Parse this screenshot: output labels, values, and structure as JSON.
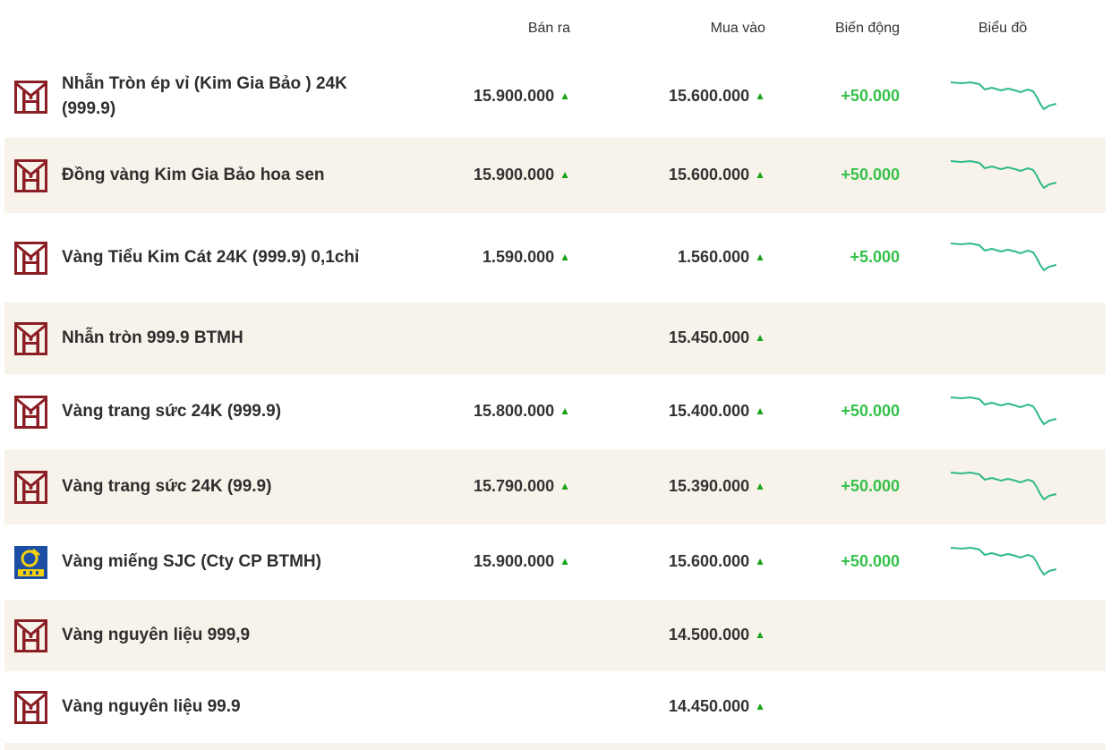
{
  "header": {
    "sell": "Bán ra",
    "buy": "Mua vào",
    "change": "Biến động",
    "chart": "Biểu đồ"
  },
  "colors": {
    "brand_red": "#8b1e24",
    "row_alt_bg": "#f8f3ea",
    "up_arrow": "#17a317",
    "change_text": "#35c14a",
    "sparkline": "#2fb98a",
    "sjc_blue": "#1c4fa3",
    "sjc_yellow": "#f5d10d"
  },
  "rows": [
    {
      "logo": "btmh-logo-icon",
      "name": "Nhẫn Tròn ép vỉ (Kim Gia Bảo ) 24K (999.9)",
      "sell": "15.900.000",
      "sell_arrow": "▲",
      "buy": "15.600.000",
      "buy_arrow": "▲",
      "change": "+50.000",
      "chart": true
    },
    {
      "logo": "btmh-logo-icon",
      "name": "Đồng vàng Kim Gia Bảo hoa sen",
      "sell": "15.900.000",
      "sell_arrow": "▲",
      "buy": "15.600.000",
      "buy_arrow": "▲",
      "change": "+50.000",
      "chart": true
    },
    {
      "logo": "btmh-logo-icon",
      "name": "Vàng Tiểu Kim Cát 24K (999.9) 0,1chỉ",
      "sell": "1.590.000",
      "sell_arrow": "▲",
      "buy": "1.560.000",
      "buy_arrow": "▲",
      "change": "+5.000",
      "chart": true
    },
    {
      "logo": "btmh-logo-icon",
      "name": "Nhẫn tròn 999.9 BTMH",
      "sell": "",
      "sell_arrow": "",
      "buy": "15.450.000",
      "buy_arrow": "▲",
      "change": "",
      "chart": false
    },
    {
      "logo": "btmh-logo-icon",
      "name": "Vàng trang sức 24K (999.9)",
      "sell": "15.800.000",
      "sell_arrow": "▲",
      "buy": "15.400.000",
      "buy_arrow": "▲",
      "change": "+50.000",
      "chart": true
    },
    {
      "logo": "btmh-logo-icon",
      "name": "Vàng trang sức 24K (99.9)",
      "sell": "15.790.000",
      "sell_arrow": "▲",
      "buy": "15.390.000",
      "buy_arrow": "▲",
      "change": "+50.000",
      "chart": true
    },
    {
      "logo": "sjc-logo-icon",
      "name": "Vàng miếng SJC (Cty CP BTMH)",
      "sell": "15.900.000",
      "sell_arrow": "▲",
      "buy": "15.600.000",
      "buy_arrow": "▲",
      "change": "+50.000",
      "chart": true
    },
    {
      "logo": "btmh-logo-icon",
      "name": "Vàng nguyên liệu 999,9",
      "sell": "",
      "sell_arrow": "",
      "buy": "14.500.000",
      "buy_arrow": "▲",
      "change": "",
      "chart": false
    },
    {
      "logo": "btmh-logo-icon",
      "name": "Vàng nguyên liệu 99.9",
      "sell": "",
      "sell_arrow": "",
      "buy": "14.450.000",
      "buy_arrow": "▲",
      "change": "",
      "chart": false
    },
    {
      "logo": "",
      "name": "",
      "sell": "",
      "sell_arrow": "",
      "buy": "",
      "buy_arrow": "",
      "change": "",
      "chart": false
    }
  ]
}
